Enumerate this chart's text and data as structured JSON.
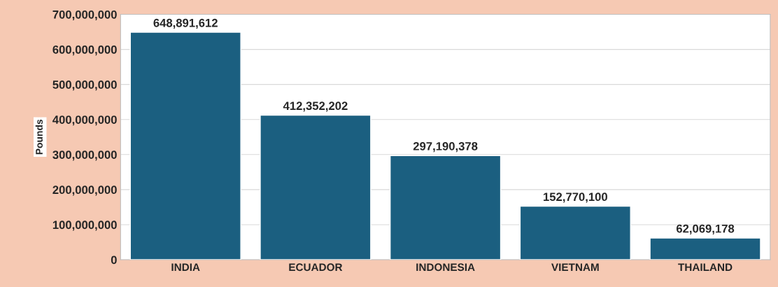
{
  "chart_data": {
    "type": "bar",
    "ylabel": "Pounds",
    "categories": [
      "INDIA",
      "ECUADOR",
      "INDONESIA",
      "VIETNAM",
      "THAILAND"
    ],
    "values": [
      648891612,
      412352202,
      297190378,
      152770100,
      62069178
    ],
    "color": "#1b5f80",
    "ylim": [
      0,
      700000000
    ],
    "yticks": [
      0,
      {
        "value": 100000000,
        "label": "100,000,000"
      },
      {
        "value": 200000000,
        "label": "200,000,000"
      },
      {
        "value": 300000000,
        "label": "300,000,000"
      },
      {
        "value": 400000000,
        "label": "400,000,000"
      },
      {
        "value": 500000000,
        "label": "500,000,000"
      },
      {
        "value": 600000000,
        "label": "600,000,000"
      },
      {
        "value": 700000000,
        "label": "700,000,000"
      }
    ],
    "value_labels": [
      "648,891,612",
      "412,352,202",
      "297,190,378",
      "152,770,100",
      "62,069,178"
    ],
    "grid": "y"
  }
}
